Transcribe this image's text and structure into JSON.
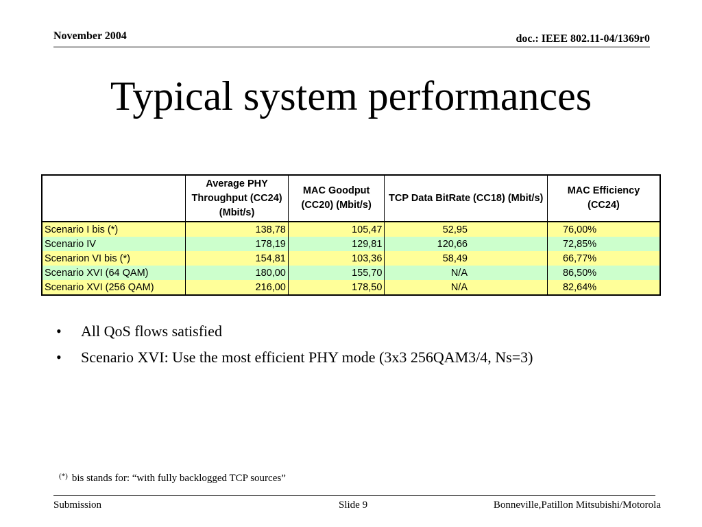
{
  "header": {
    "date": "November 2004",
    "doc_id": "doc.: IEEE 802.11-04/1369r0"
  },
  "title": "Typical system performances",
  "table": {
    "headers": [
      "",
      "Average PHY Throughput (CC24) (Mbit/s)",
      "MAC Goodput (CC20) (Mbit/s)",
      "TCP Data BitRate (CC18) (Mbit/s)",
      "MAC Efficiency (CC24)"
    ],
    "rows": [
      {
        "scenario": "Scenario I bis (*)",
        "phy": "138,78",
        "mac_goodput": "105,47",
        "tcp": "52,95",
        "efficiency": "76,00%"
      },
      {
        "scenario": "Scenario IV",
        "phy": "178,19",
        "mac_goodput": "129,81",
        "tcp": "120,66",
        "efficiency": "72,85%"
      },
      {
        "scenario": "Scenarion VI bis (*)",
        "phy": "154,81",
        "mac_goodput": "103,36",
        "tcp": "58,49",
        "efficiency": "66,77%"
      },
      {
        "scenario": "Scenario XVI (64 QAM)",
        "phy": "180,00",
        "mac_goodput": "155,70",
        "tcp": "N/A",
        "efficiency": "86,50%"
      },
      {
        "scenario": "Scenario XVI (256 QAM)",
        "phy": "216,00",
        "mac_goodput": "178,50",
        "tcp": "N/A",
        "efficiency": "82,64%"
      }
    ],
    "row_colors": {
      "odd": "#ffff99",
      "even": "#ccffcc"
    }
  },
  "bullets": [
    "All QoS flows satisfied",
    "Scenario XVI: Use the most efficient PHY mode (3x3 256QAM3/4, Ns=3)"
  ],
  "bullet_glyph": "•",
  "footnote": {
    "mark": "(*)",
    "text": "bis stands for: “with fully backlogged TCP sources”"
  },
  "footer": {
    "left": "Submission",
    "center": "Slide 9",
    "right": "Bonneville,Patillon Mitsubishi/Motorola"
  }
}
